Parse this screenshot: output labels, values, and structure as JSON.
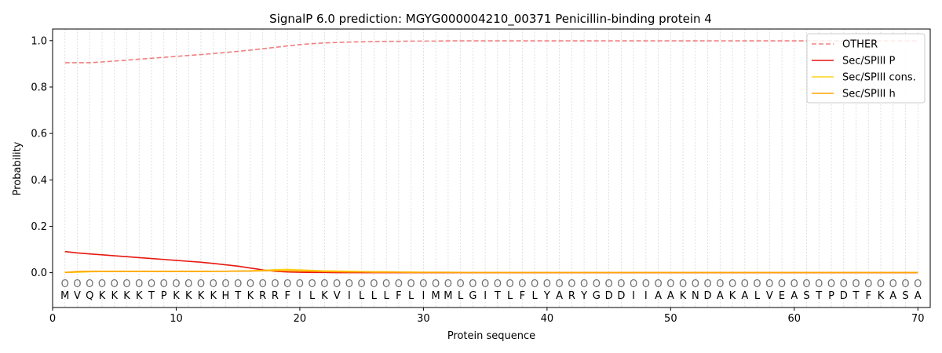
{
  "chart_data": {
    "type": "line",
    "title": "SignalP 6.0 prediction: MGYG000004210_00371 Penicillin-binding protein 4",
    "xlabel": "Protein sequence",
    "ylabel": "Probability",
    "xlim": [
      0,
      71
    ],
    "ylim": [
      -0.15,
      1.05
    ],
    "x_ticks": [
      0,
      10,
      20,
      30,
      40,
      50,
      60,
      70
    ],
    "y_ticks": [
      0.0,
      0.2,
      0.4,
      0.6,
      0.8,
      1.0
    ],
    "x_tick_labels": [
      "0",
      "10",
      "20",
      "30",
      "40",
      "50",
      "60",
      "70"
    ],
    "y_tick_labels": [
      "0.0",
      "0.2",
      "0.4",
      "0.6",
      "0.8",
      "1.0"
    ],
    "grid": "vertical dotted lines at each residue",
    "legend_position": "top-right",
    "sequence": [
      "M",
      "V",
      "Q",
      "K",
      "K",
      "K",
      "K",
      "T",
      "P",
      "K",
      "K",
      "K",
      "K",
      "H",
      "T",
      "K",
      "R",
      "R",
      "F",
      "I",
      "L",
      "K",
      "V",
      "I",
      "L",
      "L",
      "L",
      "F",
      "L",
      "I",
      "M",
      "M",
      "L",
      "G",
      "I",
      "T",
      "L",
      "F",
      "L",
      "Y",
      "A",
      "R",
      "Y",
      "G",
      "D",
      "D",
      "I",
      "I",
      "A",
      "A",
      "K",
      "N",
      "D",
      "A",
      "K",
      "A",
      "L",
      "V",
      "E",
      "A",
      "S",
      "T",
      "P",
      "D",
      "T",
      "F",
      "K",
      "A",
      "S",
      "A"
    ],
    "region_labels": [
      "O",
      "O",
      "O",
      "O",
      "O",
      "O",
      "O",
      "O",
      "O",
      "O",
      "O",
      "O",
      "O",
      "O",
      "O",
      "O",
      "O",
      "O",
      "O",
      "O",
      "O",
      "O",
      "O",
      "O",
      "O",
      "O",
      "O",
      "O",
      "O",
      "O",
      "O",
      "O",
      "O",
      "O",
      "O",
      "O",
      "O",
      "O",
      "O",
      "O",
      "O",
      "O",
      "O",
      "O",
      "O",
      "O",
      "O",
      "O",
      "O",
      "O",
      "O",
      "O",
      "O",
      "O",
      "O",
      "O",
      "O",
      "O",
      "O",
      "O",
      "O",
      "O",
      "O",
      "O",
      "O",
      "O",
      "O",
      "O",
      "O",
      "O"
    ],
    "region_label_y": -0.045,
    "series": [
      {
        "name": "OTHER",
        "color": "#f08080",
        "style": "dashed",
        "values": [
          0.905,
          0.905,
          0.905,
          0.908,
          0.912,
          0.916,
          0.92,
          0.924,
          0.928,
          0.932,
          0.936,
          0.94,
          0.944,
          0.949,
          0.954,
          0.959,
          0.965,
          0.971,
          0.977,
          0.983,
          0.987,
          0.99,
          0.992,
          0.994,
          0.995,
          0.996,
          0.997,
          0.997,
          0.998,
          0.998,
          0.998,
          0.999,
          0.999,
          0.999,
          0.999,
          0.999,
          0.999,
          0.999,
          0.999,
          0.999,
          0.999,
          0.999,
          0.999,
          0.999,
          0.999,
          0.999,
          0.999,
          0.999,
          0.999,
          0.999,
          0.999,
          0.999,
          0.999,
          0.999,
          0.999,
          0.999,
          0.999,
          0.999,
          0.999,
          0.999,
          0.999,
          0.999,
          0.999,
          0.999,
          0.999,
          0.999,
          0.999,
          0.999,
          0.999,
          0.999
        ]
      },
      {
        "name": "Sec/SPIII P",
        "color": "#e8170f",
        "style": "solid",
        "values": [
          0.091,
          0.085,
          0.081,
          0.077,
          0.073,
          0.069,
          0.065,
          0.061,
          0.057,
          0.053,
          0.049,
          0.045,
          0.04,
          0.034,
          0.028,
          0.02,
          0.012,
          0.006,
          0.003,
          0.002,
          0.001,
          0.001,
          0,
          0,
          0,
          0,
          0,
          0,
          0,
          0,
          0,
          0,
          0,
          0,
          0,
          0,
          0,
          0,
          0,
          0,
          0,
          0,
          0,
          0,
          0,
          0,
          0,
          0,
          0,
          0,
          0,
          0,
          0,
          0,
          0,
          0,
          0,
          0,
          0,
          0,
          0,
          0,
          0,
          0,
          0,
          0,
          0,
          0,
          0,
          0
        ]
      },
      {
        "name": "Sec/SPIII cons.",
        "color": "#ffd21a",
        "style": "solid",
        "values": [
          0.001,
          0.002,
          0.004,
          0.005,
          0.005,
          0.005,
          0.005,
          0.005,
          0.005,
          0.005,
          0.005,
          0.005,
          0.006,
          0.006,
          0.007,
          0.008,
          0.01,
          0.013,
          0.014,
          0.012,
          0.01,
          0.008,
          0.007,
          0.006,
          0.005,
          0.004,
          0.004,
          0.003,
          0.003,
          0.002,
          0.002,
          0.002,
          0.001,
          0.001,
          0.001,
          0.001,
          0.001,
          0.001,
          0.001,
          0.001,
          0.001,
          0.001,
          0.001,
          0.001,
          0.001,
          0.001,
          0.001,
          0.001,
          0.001,
          0.001,
          0.001,
          0.001,
          0.001,
          0.001,
          0.001,
          0.001,
          0.001,
          0.001,
          0.001,
          0.001,
          0.001,
          0.001,
          0.001,
          0.001,
          0.001,
          0.001,
          0.001,
          0.001,
          0.001,
          0.001
        ]
      },
      {
        "name": "Sec/SPIII h",
        "color": "#ffa500",
        "style": "solid",
        "values": [
          0.001,
          0.005,
          0.006,
          0.006,
          0.006,
          0.006,
          0.006,
          0.006,
          0.006,
          0.006,
          0.006,
          0.006,
          0.006,
          0.006,
          0.007,
          0.007,
          0.008,
          0.008,
          0.008,
          0.007,
          0.006,
          0.005,
          0.004,
          0.003,
          0.003,
          0.002,
          0.002,
          0.002,
          0.001,
          0.001,
          0.001,
          0.001,
          0.001,
          0.001,
          0.001,
          0.001,
          0.001,
          0.001,
          0.001,
          0.001,
          0.001,
          0.001,
          0.001,
          0.001,
          0.001,
          0.001,
          0.001,
          0.001,
          0.001,
          0.001,
          0.001,
          0.001,
          0.001,
          0.001,
          0.001,
          0.001,
          0.001,
          0.001,
          0.001,
          0.001,
          0.001,
          0.001,
          0.001,
          0.001,
          0.001,
          0.001,
          0.001,
          0.001,
          0.001,
          0.001
        ]
      }
    ]
  }
}
